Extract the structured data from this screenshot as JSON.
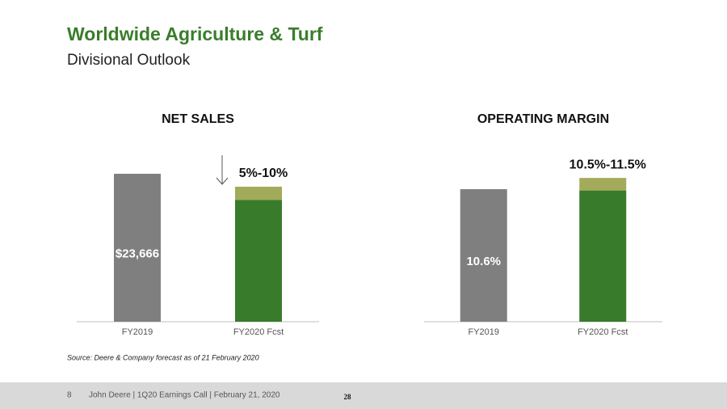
{
  "header": {
    "title": "Worldwide Agriculture & Turf",
    "subtitle": "Divisional Outlook"
  },
  "chart_data": [
    {
      "type": "bar",
      "stacked": true,
      "title": "NET SALES",
      "categories": [
        "FY2019",
        "FY2020 Fcst"
      ],
      "series": [
        {
          "color": "#7f7f7f",
          "values": [
            23666,
            null
          ],
          "value_labels": [
            "$23,666",
            null
          ]
        },
        {
          "color": "#387c2b",
          "values": [
            null,
            19500
          ]
        },
        {
          "color": "#a3ab5a",
          "values": [
            null,
            2100
          ]
        }
      ],
      "annotation": "5%-10%",
      "ylim": [
        0,
        30000
      ]
    },
    {
      "type": "bar",
      "stacked": true,
      "title": "OPERATING MARGIN",
      "categories": [
        "FY2019",
        "FY2020 Fcst"
      ],
      "series": [
        {
          "color": "#7f7f7f",
          "values": [
            10.6,
            null
          ],
          "value_labels": [
            "10.6%",
            null
          ]
        },
        {
          "color": "#387c2b",
          "values": [
            null,
            10.5
          ]
        },
        {
          "color": "#a3ab5a",
          "values": [
            null,
            1.0
          ]
        }
      ],
      "annotation": "10.5%-11.5%",
      "ylim": [
        0,
        15
      ]
    }
  ],
  "source": "Source: Deere & Company forecast as of 21 February 2020",
  "footer": {
    "page": "8",
    "text": "John Deere | 1Q20 Earnings Call | February 21, 2020",
    "slide_number": "28"
  }
}
